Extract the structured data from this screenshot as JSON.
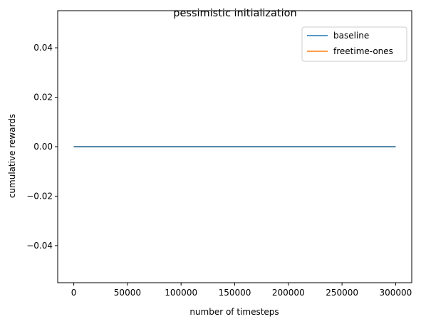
{
  "chart_data": {
    "type": "line",
    "title": "pessimistic initialization",
    "xlabel": "number of timesteps",
    "ylabel": "cumulative rewards",
    "xlim": [
      -15000,
      315000
    ],
    "ylim": [
      -0.055,
      0.055
    ],
    "xticks": [
      0,
      50000,
      100000,
      150000,
      200000,
      250000,
      300000
    ],
    "xtick_labels": [
      "0",
      "50000",
      "100000",
      "150000",
      "200000",
      "250000",
      "300000"
    ],
    "yticks": [
      -0.04,
      -0.02,
      0.0,
      0.02,
      0.04
    ],
    "ytick_labels": [
      "−0.04",
      "−0.02",
      "0.00",
      "0.02",
      "0.04"
    ],
    "grid": false,
    "legend_position": "top-right",
    "series": [
      {
        "name": "baseline",
        "color": "#1f77b4",
        "x": [
          0,
          300000
        ],
        "y": [
          0,
          0
        ]
      },
      {
        "name": "freetime-ones",
        "color": "#ff7f0e",
        "x": [
          0,
          300000
        ],
        "y": [
          0,
          0
        ]
      }
    ]
  }
}
